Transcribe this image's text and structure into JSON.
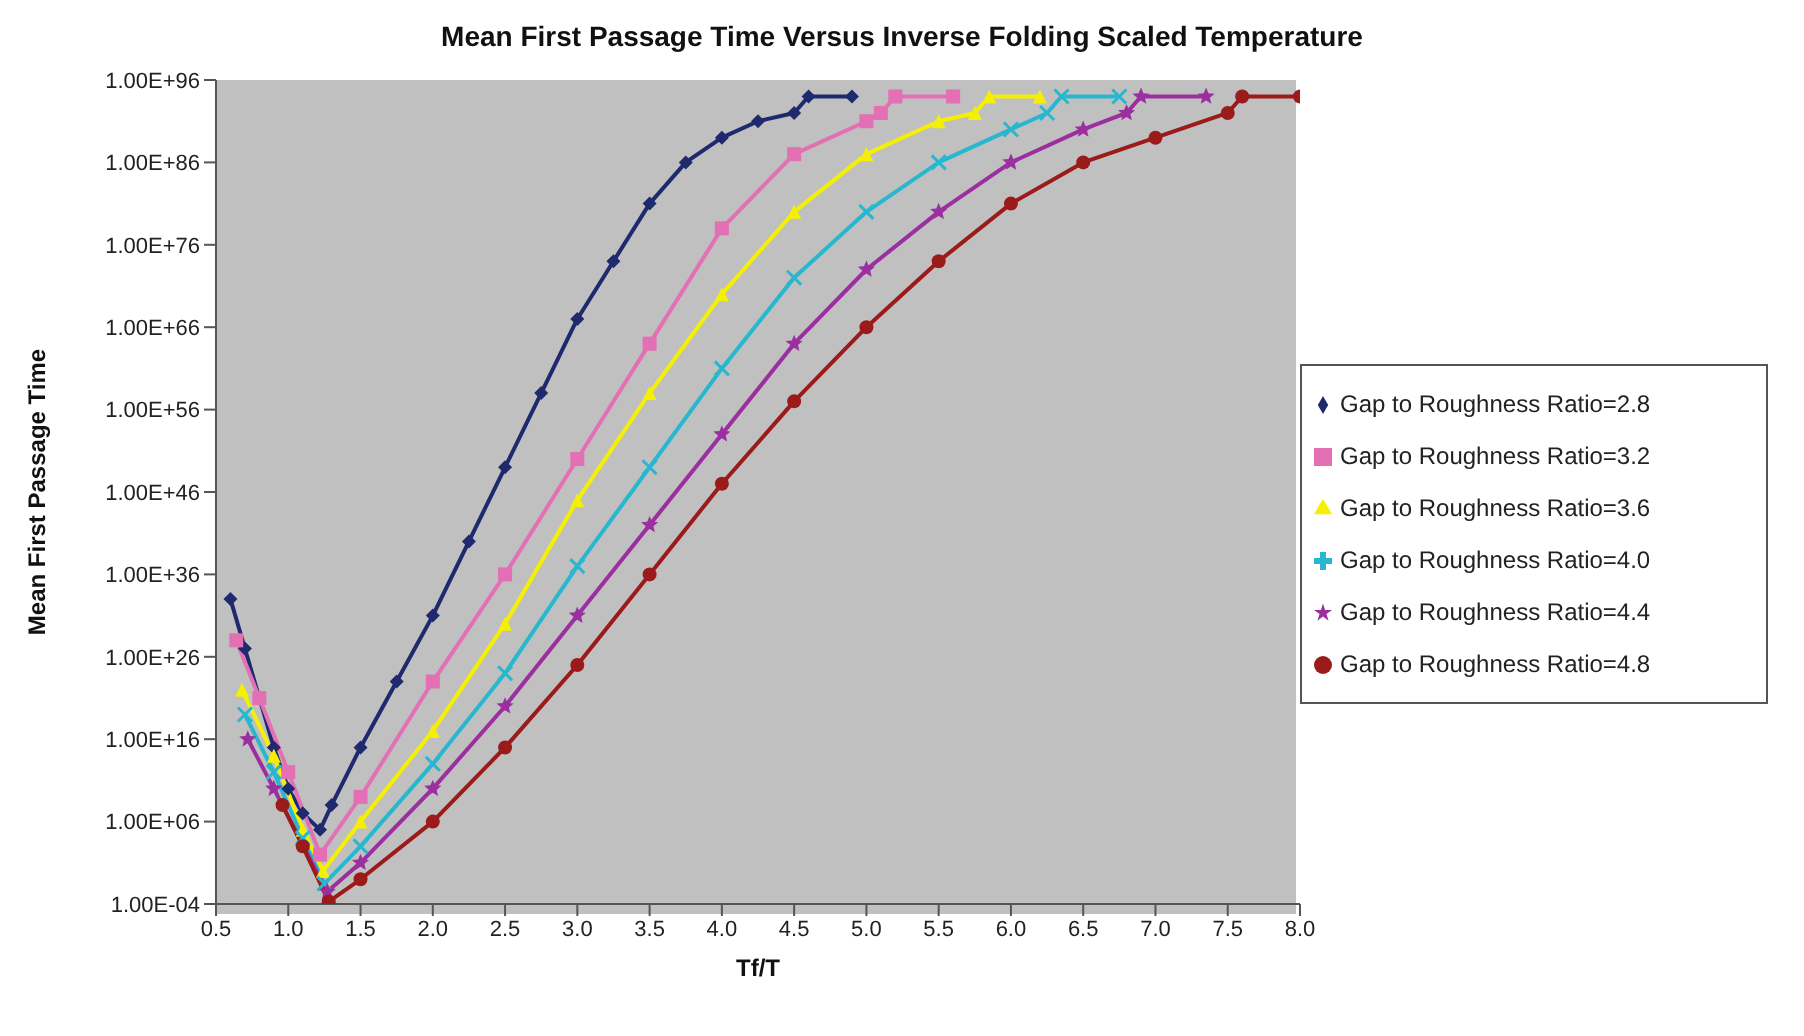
{
  "chart_data": {
    "type": "line",
    "title": "Mean First Passage Time Versus Inverse Folding Scaled Temperature",
    "xlabel": "Tf/T",
    "ylabel": "Mean First Passage Time",
    "log": "y",
    "grid": false,
    "legend": "right",
    "line_style": "solid",
    "xlim": [
      0.5,
      8.0
    ],
    "xticks": [
      {
        "value": 0.5,
        "label": "0.5"
      },
      {
        "value": 1,
        "label": "1.0"
      },
      {
        "value": 1.5,
        "label": "1.5"
      },
      {
        "value": 2,
        "label": "2.0"
      },
      {
        "value": 2.5,
        "label": "2.5"
      },
      {
        "value": 3,
        "label": "3.0"
      },
      {
        "value": 3.5,
        "label": "3.5"
      },
      {
        "value": 4,
        "label": "4.0"
      },
      {
        "value": 4.5,
        "label": "4.5"
      },
      {
        "value": 5,
        "label": "5.0"
      },
      {
        "value": 5.5,
        "label": "5.5"
      },
      {
        "value": 6,
        "label": "6.0"
      },
      {
        "value": 6.5,
        "label": "6.5"
      },
      {
        "value": 7,
        "label": "7.0"
      },
      {
        "value": 7.5,
        "label": "7.5"
      },
      {
        "value": 8,
        "label": "8.0"
      }
    ],
    "ylim": [
      0.0001,
      1e+96
    ],
    "yticks": [
      {
        "value": 0.0001,
        "label": "1.00E-04"
      },
      {
        "value": 1000000.0,
        "label": "1.00E+06"
      },
      {
        "value": 1e+16,
        "label": "1.00E+16"
      },
      {
        "value": 1e+26,
        "label": "1.00E+26"
      },
      {
        "value": 1e+36,
        "label": "1.00E+36"
      },
      {
        "value": 1e+46,
        "label": "1.00E+46"
      },
      {
        "value": 1e+56,
        "label": "1.00E+56"
      },
      {
        "value": 1e+66,
        "label": "1.00E+66"
      },
      {
        "value": 1e+76,
        "label": "1.00E+76"
      },
      {
        "value": 1e+86,
        "label": "1.00E+86"
      },
      {
        "value": 1e+96,
        "label": "1.00E+96"
      }
    ],
    "series": [
      {
        "name": "Gap to Roughness Ratio=2.8",
        "color": "#1f2a6e",
        "marker": "diamond",
        "x": [
          0.6,
          0.7,
          0.8,
          0.9,
          1.0,
          1.1,
          1.22,
          1.3,
          1.5,
          1.75,
          2.0,
          2.25,
          2.5,
          2.75,
          3.0,
          3.25,
          3.5,
          3.75,
          4.0,
          4.25,
          4.5,
          4.6,
          4.9
        ],
        "values": [
          1e+33,
          1e+27,
          1e+21,
          1000000000000000.0,
          10000000000.0,
          10000000.0,
          100000.0,
          100000000.0,
          1000000000000000.0,
          1e+23,
          1e+31,
          1e+40,
          1e+49,
          1e+58,
          1e+67,
          1e+74,
          1e+81,
          1e+86,
          1e+89,
          1e+91,
          1e+92,
          1e+94,
          1e+94
        ]
      },
      {
        "name": "Gap to Roughness Ratio=3.2",
        "color": "#e36fb4",
        "marker": "square",
        "x": [
          0.64,
          0.8,
          1.0,
          1.22,
          1.5,
          2.0,
          2.5,
          3.0,
          3.5,
          4.0,
          4.5,
          5.0,
          5.1,
          5.2,
          5.6
        ],
        "values": [
          1e+28,
          1e+21,
          1000000000000.0,
          100.0,
          1000000000.0,
          1e+23,
          1e+36,
          1e+50,
          1e+64,
          1e+78,
          1e+87,
          1e+91,
          1e+92,
          1e+94,
          1e+94
        ]
      },
      {
        "name": "Gap to Roughness Ratio=3.6",
        "color": "#f5f000",
        "marker": "triangle",
        "x": [
          0.68,
          0.9,
          1.1,
          1.24,
          1.5,
          2.0,
          2.5,
          3.0,
          3.5,
          4.0,
          4.5,
          5.0,
          5.5,
          5.75,
          5.85,
          6.2
        ],
        "values": [
          1e+22,
          100000000000000.0,
          100000.0,
          1,
          1000000.0,
          1e+17,
          1e+30,
          1e+45,
          1e+58,
          1e+70,
          1e+80,
          1e+87,
          1e+91,
          1e+92,
          1e+94,
          1e+94
        ]
      },
      {
        "name": "Gap to Roughness Ratio=4.0",
        "color": "#27b8cf",
        "marker": "cross",
        "x": [
          0.7,
          0.9,
          1.1,
          1.25,
          1.5,
          2.0,
          2.5,
          3.0,
          3.5,
          4.0,
          4.5,
          5.0,
          5.5,
          6.0,
          6.25,
          6.35,
          6.75
        ],
        "values": [
          1e+19,
          1000000000000.0,
          10000.0,
          0.03,
          1000.0,
          10000000000000.0,
          1e+24,
          1e+37,
          1e+49,
          1e+61,
          1e+72,
          1e+80,
          1e+86,
          1e+90,
          1e+92,
          1e+94,
          1e+94
        ]
      },
      {
        "name": "Gap to Roughness Ratio=4.4",
        "color": "#9b2fa0",
        "marker": "star",
        "x": [
          0.72,
          0.9,
          1.27,
          1.5,
          2.0,
          2.5,
          3.0,
          3.5,
          4.0,
          4.5,
          5.0,
          5.5,
          6.0,
          6.5,
          6.8,
          6.9,
          7.35
        ],
        "values": [
          1e+16,
          10000000000.0,
          0.003,
          10,
          10000000000.0,
          1e+20,
          1e+31,
          1e+42,
          1e+53,
          1e+64,
          1e+73,
          1e+80,
          1e+86,
          1e+90,
          1e+92,
          1e+94,
          1e+94
        ]
      },
      {
        "name": "Gap to Roughness Ratio=4.8",
        "color": "#9b1a1a",
        "marker": "circle",
        "x": [
          0.96,
          1.1,
          1.28,
          1.5,
          2.0,
          2.5,
          3.0,
          3.5,
          4.0,
          4.5,
          5.0,
          5.5,
          6.0,
          6.5,
          7.0,
          7.5,
          7.6,
          8.0
        ],
        "values": [
          100000000.0,
          1000.0,
          0.0002,
          0.1,
          1000000.0,
          1000000000000000.0,
          1e+25,
          1e+36,
          1e+47,
          1e+57,
          1e+66,
          1e+74,
          1e+81,
          1e+86,
          1e+89,
          1e+92,
          1e+94,
          1e+94
        ]
      }
    ]
  }
}
